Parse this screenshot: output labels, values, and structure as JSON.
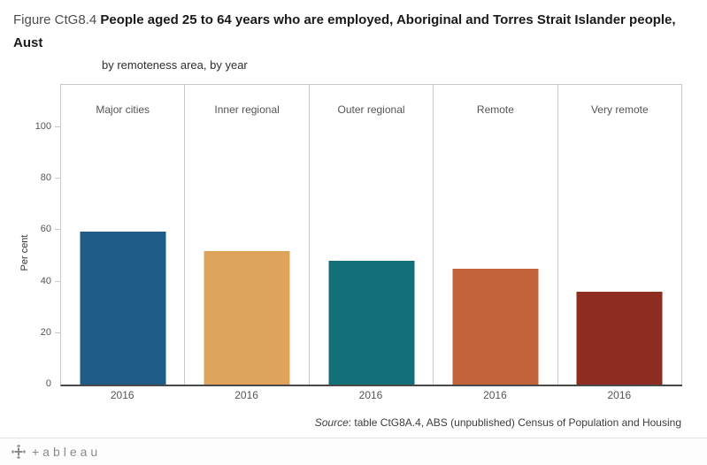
{
  "title": {
    "prefix": "Figure CtG8.4 ",
    "main": "People aged 25 to 64 years who are employed, Aboriginal and Torres Strait Islander people, Aust",
    "subtitle": "by remoteness area, by year"
  },
  "y_axis": {
    "label": "Per cent",
    "ticks": [
      "100",
      "80",
      "60",
      "40",
      "20",
      "0"
    ]
  },
  "source": {
    "prefix": "Source",
    "text": ": table CtG8A.4, ABS (unpublished) Census of Population and Housing"
  },
  "footer": {
    "logo_text": "+ableau"
  },
  "chart_data": {
    "type": "bar",
    "categories": [
      "Major cities",
      "Inner regional",
      "Outer regional",
      "Remote",
      "Very remote"
    ],
    "x_tick_labels": [
      "2016",
      "2016",
      "2016",
      "2016",
      "2016"
    ],
    "values": [
      59.5,
      52,
      48,
      45,
      36
    ],
    "colors": [
      "#1f5c87",
      "#dfa45c",
      "#136f78",
      "#c2633c",
      "#8e2c21"
    ],
    "title": "Figure CtG8.4 People aged 25 to 64 years who are employed, Aboriginal and Torres Strait Islander people, Aust",
    "subtitle": "by remoteness area, by year",
    "xlabel": "",
    "ylabel": "Per cent",
    "ylim": [
      0,
      102
    ],
    "yticks": [
      0,
      20,
      40,
      60,
      80,
      100
    ],
    "grid": "off",
    "legend": "none"
  }
}
